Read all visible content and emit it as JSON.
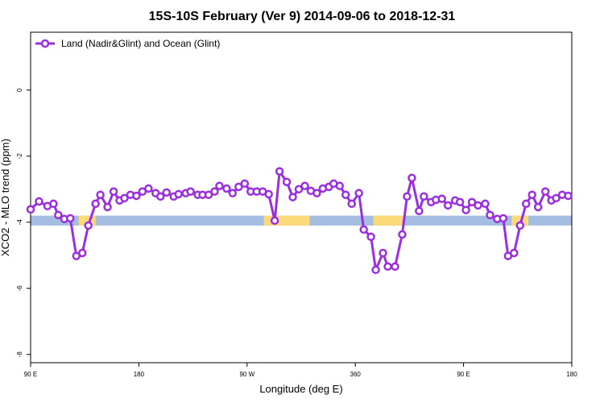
{
  "chart_data": {
    "type": "line",
    "title": "15S-10S February (Ver 9)   2014-09-06 to 2018-12-31",
    "x_label": "Longitude (deg E)",
    "y_label": "XCO2 - MLO trend (ppm)",
    "xlim": [
      90,
      540
    ],
    "ylim": [
      -8.25,
      1.75
    ],
    "xticks": [
      {
        "value": 90,
        "label": "90 E"
      },
      180,
      {
        "value": 270,
        "label": "90 W"
      },
      360,
      {
        "value": 450,
        "label": "90 E"
      },
      {
        "value": 540,
        "label": "180"
      }
    ],
    "yticks": [
      0,
      -2,
      -4,
      -6,
      -8
    ],
    "legend": "top-left",
    "surface": {
      "ylim": [
        -4.1,
        -3.8
      ],
      "color": "#a4bde0",
      "segments": [
        {
          "x": [
            130,
            144
          ],
          "color": "#fcd97a"
        },
        {
          "x": [
            284,
            322
          ],
          "color": "#fcd97a"
        },
        {
          "x": [
            375,
            401
          ],
          "color": "#fcd97a"
        },
        {
          "x": [
            490,
            504
          ],
          "color": "#fcd97a"
        }
      ]
    },
    "x": [
      90,
      97,
      104,
      109,
      113,
      118,
      123,
      128,
      133,
      138,
      144,
      148,
      154,
      159,
      164,
      168,
      173,
      178,
      183,
      188,
      194,
      198,
      203,
      209,
      213,
      219,
      223,
      229,
      233,
      238,
      243,
      247,
      253,
      258,
      263,
      268,
      273,
      278,
      283,
      288,
      293,
      297,
      303,
      308,
      313,
      318,
      323,
      328,
      333,
      338,
      342,
      347,
      352,
      357,
      363,
      367,
      373,
      377,
      383,
      387,
      393,
      399,
      403,
      407,
      413,
      417,
      423,
      427,
      432,
      437,
      443,
      447,
      452,
      457,
      462,
      468,
      472,
      478,
      483,
      487,
      492,
      497,
      502,
      507,
      512,
      518,
      523,
      527,
      532,
      537
    ],
    "series": [
      {
        "name": "Land (Nadir&Glint) and Ocean (Glint)",
        "color": "#9b2fe0",
        "values": [
          -3.61,
          -3.37,
          -3.51,
          -3.44,
          -3.78,
          -3.9,
          -3.88,
          -5.02,
          -4.93,
          -4.1,
          -3.44,
          -3.17,
          -3.54,
          -3.07,
          -3.34,
          -3.27,
          -3.17,
          -3.2,
          -3.07,
          -2.98,
          -3.12,
          -3.22,
          -3.1,
          -3.22,
          -3.15,
          -3.12,
          -3.07,
          -3.17,
          -3.17,
          -3.17,
          -3.07,
          -2.9,
          -2.98,
          -3.12,
          -2.93,
          -2.83,
          -3.07,
          -3.07,
          -3.07,
          -3.15,
          -3.95,
          -2.46,
          -2.78,
          -3.24,
          -3.0,
          -2.9,
          -3.05,
          -3.12,
          -2.98,
          -2.93,
          -2.83,
          -2.9,
          -3.17,
          -3.44,
          -3.12,
          -4.22,
          -4.44,
          -5.44,
          -4.93,
          -5.34,
          -5.34,
          -4.37,
          -3.22,
          -2.66,
          -3.66,
          -3.22,
          -3.39,
          -3.32,
          -3.29,
          -3.49,
          -3.34,
          -3.39,
          -3.63,
          -3.39,
          -3.49,
          -3.44,
          -3.78,
          -3.9,
          -3.88,
          -5.02,
          -4.93,
          -4.1,
          -3.44,
          -3.17,
          -3.54,
          -3.07,
          -3.34,
          -3.27,
          -3.17,
          -3.2
        ]
      }
    ]
  }
}
